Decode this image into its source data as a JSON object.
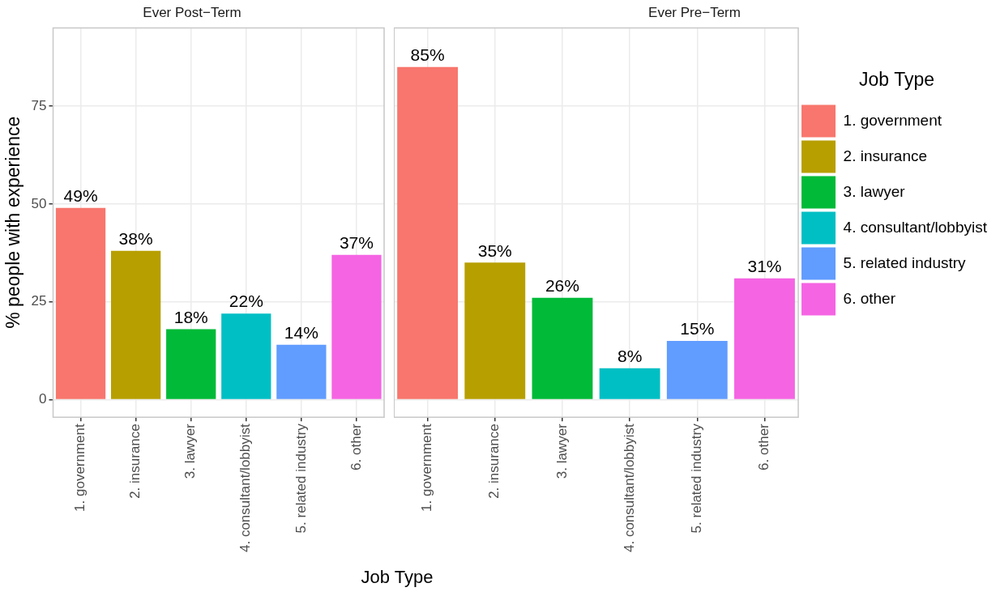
{
  "chart_data": [
    {
      "type": "bar",
      "title": "Ever Post−Term",
      "xlabel": "Job Type",
      "ylabel": "% people with experience",
      "categories": [
        "1. government",
        "2. insurance",
        "3. lawyer",
        "4. consultant/lobbyist",
        "5. related industry",
        "6. other"
      ],
      "series": [
        {
          "color": "#f8766d",
          "values": [
            49,
            null,
            null,
            null,
            null,
            null
          ],
          "value_labels": [
            "49%",
            null,
            null,
            null,
            null,
            null
          ]
        },
        {
          "color": "#b79f00",
          "values": [
            null,
            38,
            null,
            null,
            null,
            null
          ],
          "value_labels": [
            null,
            "38%",
            null,
            null,
            null,
            null
          ]
        },
        {
          "color": "#00ba38",
          "values": [
            null,
            null,
            18,
            null,
            null,
            null
          ],
          "value_labels": [
            null,
            null,
            "18%",
            null,
            null,
            null
          ]
        },
        {
          "color": "#00bfc4",
          "values": [
            null,
            null,
            null,
            22,
            null,
            null
          ],
          "value_labels": [
            null,
            null,
            null,
            "22%",
            null,
            null
          ]
        },
        {
          "color": "#619cff",
          "values": [
            null,
            null,
            null,
            null,
            14,
            null
          ],
          "value_labels": [
            null,
            null,
            null,
            null,
            "14%",
            null
          ]
        },
        {
          "color": "#f564e3",
          "values": [
            null,
            null,
            null,
            null,
            null,
            37
          ],
          "value_labels": [
            null,
            null,
            null,
            null,
            null,
            "37%"
          ]
        }
      ],
      "ylim": [
        -4.5,
        95
      ],
      "yticks": [
        0,
        25,
        50,
        75
      ],
      "grid": true
    },
    {
      "type": "bar",
      "title": "Ever Pre−Term",
      "legend_title": "Job Type",
      "legend": "right",
      "categories": [
        "1. government",
        "2. insurance",
        "3. lawyer",
        "4. consultant/lobbyist",
        "5. related industry",
        "6. other"
      ],
      "series": [
        {
          "name": "1. government",
          "color": "#f8766d",
          "values": [
            85,
            null,
            null,
            null,
            null,
            null
          ],
          "value_labels": [
            "85%",
            null,
            null,
            null,
            null,
            null
          ]
        },
        {
          "name": "2. insurance",
          "color": "#b79f00",
          "values": [
            null,
            35,
            null,
            null,
            null,
            null
          ],
          "value_labels": [
            null,
            "35%",
            null,
            null,
            null,
            null
          ]
        },
        {
          "name": "3. lawyer",
          "color": "#00ba38",
          "values": [
            null,
            null,
            26,
            null,
            null,
            null
          ],
          "value_labels": [
            null,
            null,
            "26%",
            null,
            null,
            null
          ]
        },
        {
          "name": "4. consultant/lobbyist",
          "color": "#00bfc4",
          "values": [
            null,
            null,
            null,
            8,
            null,
            null
          ],
          "value_labels": [
            null,
            null,
            null,
            "8%",
            null,
            null
          ]
        },
        {
          "name": "5. related industry",
          "color": "#619cff",
          "values": [
            null,
            null,
            null,
            null,
            15,
            null
          ],
          "value_labels": [
            null,
            null,
            null,
            null,
            "15%",
            null
          ]
        },
        {
          "name": "6. other",
          "color": "#f564e3",
          "values": [
            null,
            null,
            null,
            null,
            null,
            31
          ],
          "value_labels": [
            null,
            null,
            null,
            null,
            null,
            "31%"
          ]
        }
      ],
      "ylim": [
        -4.5,
        95
      ],
      "yticks": [
        0,
        25,
        50,
        75
      ],
      "grid": true,
      "tick_labels": "x"
    }
  ]
}
